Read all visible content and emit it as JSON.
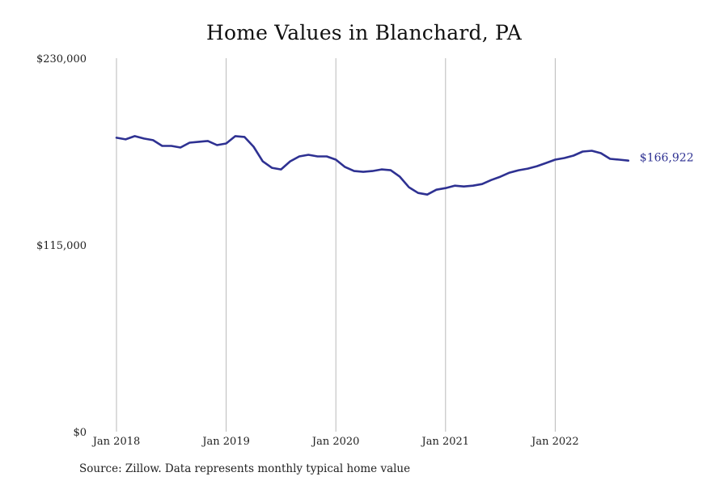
{
  "chart_data": {
    "type": "line",
    "title": "Home Values in Blanchard, PA",
    "xlabel": "",
    "ylabel": "",
    "ylim": [
      0,
      230000
    ],
    "y_ticks": [
      {
        "value": 0,
        "label": "$0"
      },
      {
        "value": 115000,
        "label": "$115,000"
      },
      {
        "value": 230000,
        "label": "$230,000"
      }
    ],
    "x_ticks": [
      {
        "value": "2018-01",
        "label": "Jan 2018"
      },
      {
        "value": "2019-01",
        "label": "Jan 2019"
      },
      {
        "value": "2020-01",
        "label": "Jan 2020"
      },
      {
        "value": "2021-01",
        "label": "Jan 2021"
      },
      {
        "value": "2022-01",
        "label": "Jan 2022"
      }
    ],
    "grid": {
      "vertical": true,
      "horizontal": false
    },
    "line_color": "#2e3192",
    "end_label": "$166,922",
    "series": [
      {
        "x": [
          "2018-01",
          "2018-02",
          "2018-03",
          "2018-04",
          "2018-05",
          "2018-06",
          "2018-07",
          "2018-08",
          "2018-09",
          "2018-10",
          "2018-11",
          "2018-12",
          "2019-01",
          "2019-02",
          "2019-03",
          "2019-04",
          "2019-05",
          "2019-06",
          "2019-07",
          "2019-08",
          "2019-09",
          "2019-10",
          "2019-11",
          "2019-12",
          "2020-01",
          "2020-02",
          "2020-03",
          "2020-04",
          "2020-05",
          "2020-06",
          "2020-07",
          "2020-08",
          "2020-09",
          "2020-10",
          "2020-11",
          "2020-12",
          "2021-01",
          "2021-02",
          "2021-03",
          "2021-04",
          "2021-05",
          "2021-06",
          "2021-07",
          "2021-08",
          "2021-09",
          "2021-10",
          "2021-11",
          "2021-12",
          "2022-01",
          "2022-02",
          "2022-03",
          "2022-04",
          "2022-05",
          "2022-06",
          "2022-07",
          "2022-08",
          "2022-09"
        ],
        "values": [
          181000,
          180000,
          182000,
          180500,
          179500,
          176000,
          176000,
          175000,
          178000,
          178500,
          179000,
          176500,
          177500,
          182000,
          181500,
          175500,
          166500,
          162500,
          161500,
          166500,
          169500,
          170500,
          169500,
          169500,
          167500,
          163000,
          160500,
          160000,
          160500,
          161500,
          161000,
          157000,
          150500,
          147000,
          146000,
          149000,
          150000,
          151500,
          151000,
          151500,
          152500,
          155000,
          157000,
          159500,
          161000,
          162000,
          163500,
          165500,
          167500,
          168500,
          170000,
          172500,
          173000,
          171500,
          168000,
          167500,
          166922
        ]
      }
    ]
  },
  "footer": {
    "source": "Source: Zillow. Data represents monthly typical home value"
  }
}
